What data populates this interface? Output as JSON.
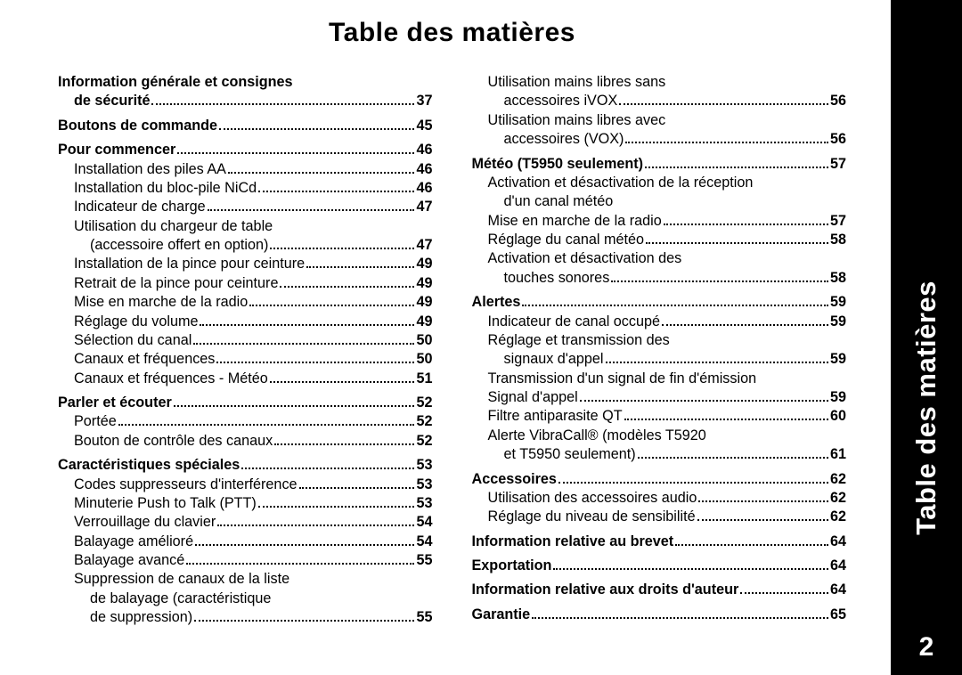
{
  "title": "Table des matières",
  "sidebar": {
    "label": "Table des matières",
    "page": "2"
  },
  "columns": [
    [
      {
        "lines": [
          "Information générale et consignes",
          "de sécurité"
        ],
        "page": "37",
        "bold": true,
        "indent": 0
      },
      {
        "lines": [
          "Boutons de commande"
        ],
        "page": "45",
        "bold": true,
        "indent": 0,
        "spaceBefore": 6
      },
      {
        "lines": [
          "Pour commencer"
        ],
        "page": "46",
        "bold": true,
        "indent": 0,
        "spaceBefore": 6
      },
      {
        "lines": [
          "Installation des piles AA"
        ],
        "page": "46",
        "indent": 1
      },
      {
        "lines": [
          "Installation du bloc-pile NiCd"
        ],
        "page": "46",
        "indent": 1
      },
      {
        "lines": [
          "Indicateur de charge"
        ],
        "page": "47",
        "indent": 1
      },
      {
        "lines": [
          "Utilisation du chargeur de table",
          "(accessoire offert en option)"
        ],
        "page": "47",
        "indent": 1
      },
      {
        "lines": [
          "Installation de la pince pour ceinture"
        ],
        "page": "49",
        "indent": 1
      },
      {
        "lines": [
          "Retrait de la pince pour ceinture"
        ],
        "page": "49",
        "indent": 1
      },
      {
        "lines": [
          "Mise en marche de la radio"
        ],
        "page": "49",
        "indent": 1
      },
      {
        "lines": [
          "Réglage du volume"
        ],
        "page": "49",
        "indent": 1
      },
      {
        "lines": [
          "Sélection du canal"
        ],
        "page": "50",
        "indent": 1
      },
      {
        "lines": [
          "Canaux et fréquences"
        ],
        "page": "50",
        "indent": 1
      },
      {
        "lines": [
          "Canaux et fréquences - Météo"
        ],
        "page": "51",
        "indent": 1
      },
      {
        "lines": [
          "Parler et écouter"
        ],
        "page": "52",
        "bold": true,
        "indent": 0,
        "spaceBefore": 6
      },
      {
        "lines": [
          "Portée"
        ],
        "page": "52",
        "indent": 1
      },
      {
        "lines": [
          "Bouton de contrôle des canaux"
        ],
        "page": "52",
        "indent": 1
      },
      {
        "lines": [
          "Caractéristiques spéciales"
        ],
        "page": "53",
        "bold": true,
        "indent": 0,
        "spaceBefore": 6
      },
      {
        "lines": [
          "Codes suppresseurs d'interférence"
        ],
        "page": "53",
        "indent": 1
      },
      {
        "lines": [
          "Minuterie Push to Talk (PTT)"
        ],
        "page": "53",
        "indent": 1
      },
      {
        "lines": [
          "Verrouillage du clavier"
        ],
        "page": "54",
        "indent": 1
      },
      {
        "lines": [
          "Balayage amélioré"
        ],
        "page": "54",
        "indent": 1
      },
      {
        "lines": [
          "Balayage avancé"
        ],
        "page": "55",
        "indent": 1
      },
      {
        "lines": [
          "Suppression de canaux de la liste",
          "de balayage (caractéristique",
          "de suppression)"
        ],
        "page": "55",
        "indent": 1
      }
    ],
    [
      {
        "lines": [
          "Utilisation mains libres sans",
          "accessoires iVOX"
        ],
        "page": "56",
        "indent": 1
      },
      {
        "lines": [
          "Utilisation mains libres avec",
          "accessoires (VOX)"
        ],
        "page": "56",
        "indent": 1
      },
      {
        "lines": [
          "Météo (T5950 seulement)"
        ],
        "page": "57",
        "bold": true,
        "indent": 0,
        "spaceBefore": 6
      },
      {
        "lines": [
          "Activation et désactivation de la réception",
          "d'un canal météo"
        ],
        "page": "",
        "indent": 1
      },
      {
        "lines": [
          "Mise en marche de la radio"
        ],
        "page": "57",
        "indent": 1
      },
      {
        "lines": [
          "Réglage du canal météo"
        ],
        "page": "58",
        "indent": 1
      },
      {
        "lines": [
          "Activation et désactivation des",
          "touches sonores"
        ],
        "page": "58",
        "indent": 1
      },
      {
        "lines": [
          "Alertes"
        ],
        "page": "59",
        "bold": true,
        "indent": 0,
        "spaceBefore": 6
      },
      {
        "lines": [
          "Indicateur de canal occupé"
        ],
        "page": "59",
        "indent": 1
      },
      {
        "lines": [
          "Réglage et transmission des",
          "signaux d'appel"
        ],
        "page": "59",
        "indent": 1
      },
      {
        "lines": [
          "Transmission d'un signal de fin d'émission"
        ],
        "page": "",
        "indent": 1
      },
      {
        "lines": [
          "Signal d'appel"
        ],
        "page": "59",
        "indent": 1
      },
      {
        "lines": [
          "Filtre antiparasite QT"
        ],
        "page": "60",
        "indent": 1
      },
      {
        "lines": [
          "Alerte VibraCall® (modèles T5920",
          "et T5950 seulement)"
        ],
        "page": "61",
        "indent": 1
      },
      {
        "lines": [
          "Accessoires"
        ],
        "page": "62",
        "bold": true,
        "indent": 0,
        "spaceBefore": 6
      },
      {
        "lines": [
          "Utilisation des accessoires audio"
        ],
        "page": "62",
        "indent": 1
      },
      {
        "lines": [
          "Réglage du niveau de sensibilité"
        ],
        "page": "62",
        "indent": 1
      },
      {
        "lines": [
          "Information relative au brevet"
        ],
        "page": "64",
        "bold": true,
        "indent": 0,
        "spaceBefore": 6
      },
      {
        "lines": [
          "Exportation"
        ],
        "page": "64",
        "bold": true,
        "indent": 0,
        "spaceBefore": 6
      },
      {
        "lines": [
          "Information relative aux droits d'auteur"
        ],
        "page": "64",
        "bold": true,
        "indent": 0,
        "spaceBefore": 6
      },
      {
        "lines": [
          "Garantie"
        ],
        "page": "65",
        "bold": true,
        "indent": 0,
        "spaceBefore": 6
      }
    ]
  ]
}
